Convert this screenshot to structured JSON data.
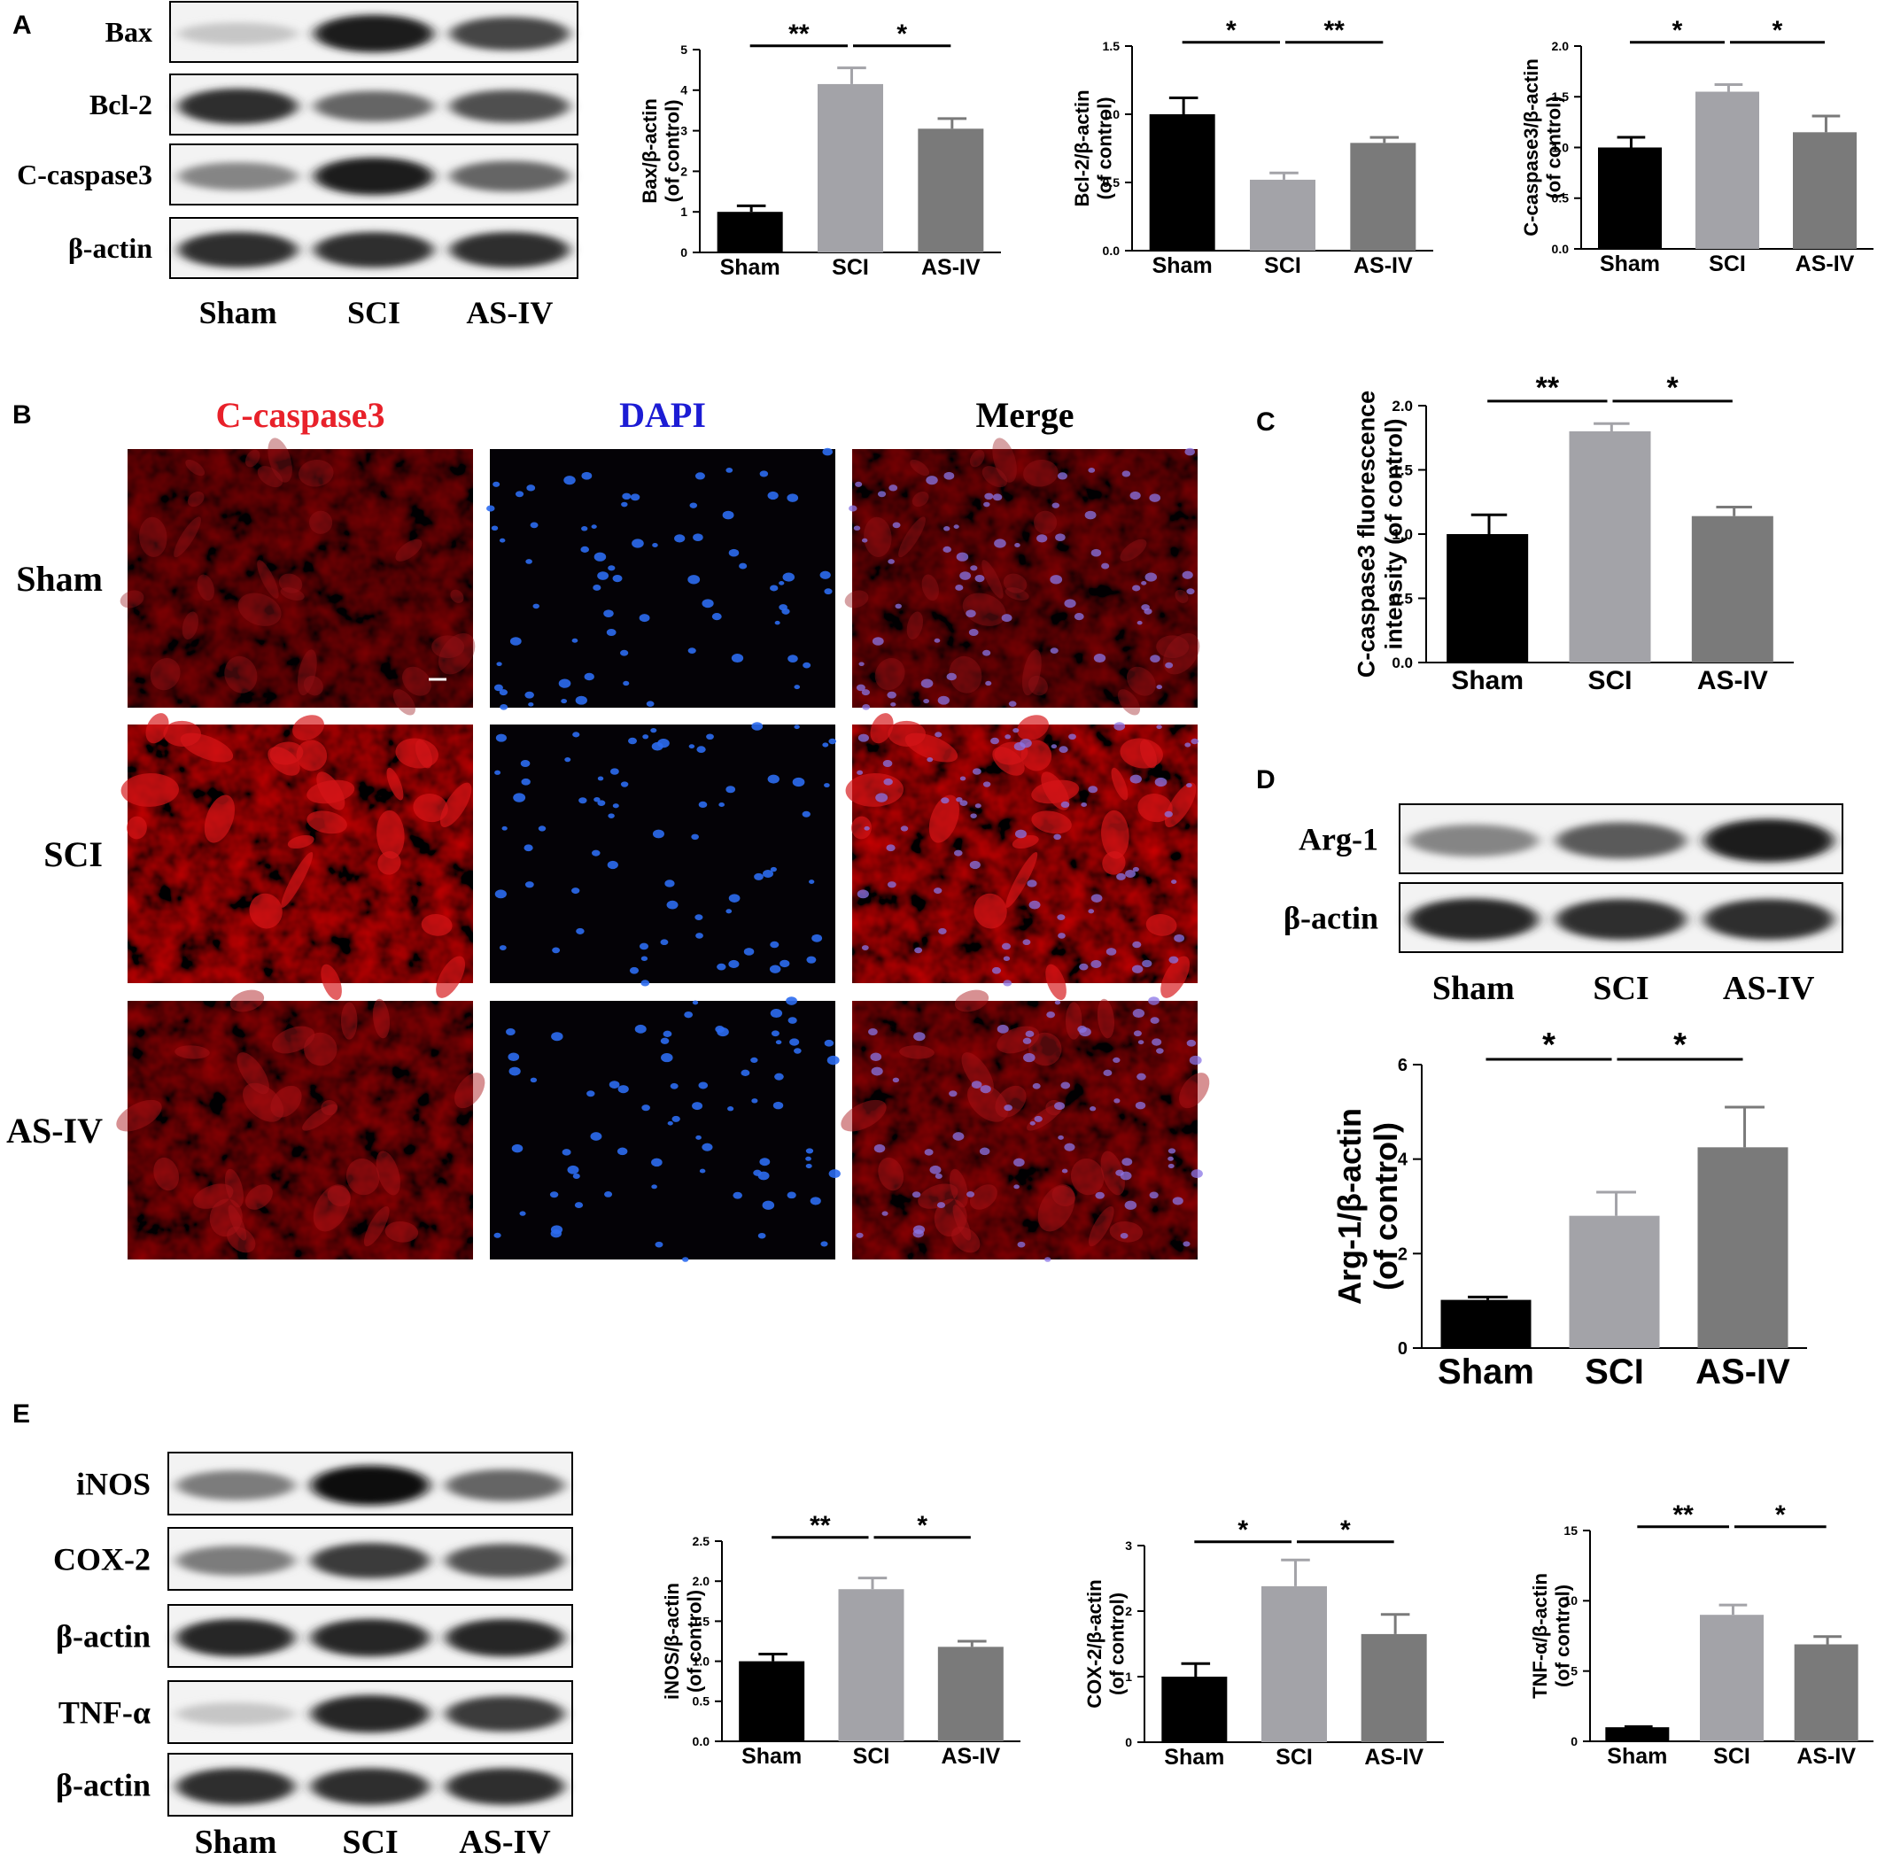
{
  "panel_letters": {
    "a": "A",
    "b": "B",
    "c": "C",
    "d": "D",
    "e": "E"
  },
  "groups": [
    "Sham",
    "SCI",
    "AS-IV"
  ],
  "colors": {
    "sham": "#000000",
    "sci": "#a3a3a8",
    "asiv": "#7a7a7a",
    "caspase_label": "#e8212a",
    "dapi_label": "#1c1cd4"
  },
  "blots": {
    "a": {
      "rows": [
        "Bax",
        "Bcl-2",
        "C-caspase3",
        "β-actin"
      ],
      "lanes": [
        "Sham",
        "SCI",
        "AS-IV"
      ]
    },
    "d": {
      "rows": [
        "Arg-1",
        "β-actin"
      ],
      "lanes": [
        "Sham",
        "SCI",
        "AS-IV"
      ]
    },
    "e": {
      "rows": [
        "iNOS",
        "COX-2",
        "β-actin",
        "TNF-α",
        "β-actin"
      ],
      "lanes": [
        "Sham",
        "SCI",
        "AS-IV"
      ]
    }
  },
  "blot_intensity": {
    "a": [
      [
        0.15,
        0.95,
        0.75
      ],
      [
        0.85,
        0.6,
        0.7
      ],
      [
        0.45,
        0.95,
        0.6
      ],
      [
        0.85,
        0.85,
        0.85
      ]
    ],
    "d": [
      [
        0.45,
        0.65,
        0.95
      ],
      [
        0.9,
        0.85,
        0.85
      ]
    ],
    "e": [
      [
        0.5,
        1.0,
        0.6
      ],
      [
        0.5,
        0.8,
        0.7
      ],
      [
        0.9,
        0.9,
        0.9
      ],
      [
        0.15,
        0.9,
        0.8
      ],
      [
        0.85,
        0.85,
        0.85
      ]
    ]
  },
  "micrographs": {
    "columns": [
      "C-caspase3",
      "DAPI",
      "Merge"
    ],
    "rows": [
      "Sham",
      "SCI",
      "AS-IV"
    ],
    "red_level": [
      0.3,
      0.85,
      0.45
    ]
  },
  "chart_data": [
    {
      "id": "bax",
      "type": "bar",
      "categories": [
        "Sham",
        "SCI",
        "AS-IV"
      ],
      "values": [
        1.0,
        4.15,
        3.05
      ],
      "errors": [
        0.15,
        0.4,
        0.25
      ],
      "ylabel": [
        "Bax/β-actin",
        "(of control)"
      ],
      "ylim": [
        0,
        5
      ],
      "yticks": [
        "0",
        "1",
        "2",
        "3",
        "4",
        "5"
      ],
      "sig": [
        {
          "from": 0,
          "to": 1,
          "label": "**"
        },
        {
          "from": 1,
          "to": 2,
          "label": "*"
        }
      ]
    },
    {
      "id": "bcl2",
      "type": "bar",
      "categories": [
        "Sham",
        "SCI",
        "AS-IV"
      ],
      "values": [
        1.0,
        0.52,
        0.79
      ],
      "errors": [
        0.12,
        0.05,
        0.04
      ],
      "ylabel": [
        "Bcl-2/β-actin",
        "(of control)"
      ],
      "ylim": [
        0,
        1.5
      ],
      "yticks": [
        "0.0",
        "0.5",
        "1.0",
        "1.5"
      ],
      "sig": [
        {
          "from": 0,
          "to": 1,
          "label": "*"
        },
        {
          "from": 1,
          "to": 2,
          "label": "**"
        }
      ]
    },
    {
      "id": "ccasp3",
      "type": "bar",
      "categories": [
        "Sham",
        "SCI",
        "AS-IV"
      ],
      "values": [
        1.0,
        1.55,
        1.15
      ],
      "errors": [
        0.1,
        0.07,
        0.16
      ],
      "ylabel": [
        "C-caspase3/β-actin",
        "(of control)"
      ],
      "ylim": [
        0,
        2.0
      ],
      "yticks": [
        "0.0",
        "0.5",
        "1.0",
        "1.5",
        "2.0"
      ],
      "sig": [
        {
          "from": 0,
          "to": 1,
          "label": "*"
        },
        {
          "from": 1,
          "to": 2,
          "label": "*"
        }
      ]
    },
    {
      "id": "fluor",
      "type": "bar",
      "categories": [
        "Sham",
        "SCI",
        "AS-IV"
      ],
      "values": [
        1.0,
        1.8,
        1.14
      ],
      "errors": [
        0.15,
        0.06,
        0.07
      ],
      "ylabel": [
        "C-caspase3 fluorescence",
        "intensity (of control)"
      ],
      "ylim": [
        0,
        2.0
      ],
      "yticks": [
        "0.0",
        "0.5",
        "1.0",
        "1.5",
        "2.0"
      ],
      "sig": [
        {
          "from": 0,
          "to": 1,
          "label": "**"
        },
        {
          "from": 1,
          "to": 2,
          "label": "*"
        }
      ]
    },
    {
      "id": "arg1",
      "type": "bar",
      "categories": [
        "Sham",
        "SCI",
        "AS-IV"
      ],
      "values": [
        1.02,
        2.8,
        4.25
      ],
      "errors": [
        0.06,
        0.5,
        0.85
      ],
      "ylabel": [
        "Arg-1/β-actin",
        "(of control)"
      ],
      "ylim": [
        0,
        6
      ],
      "yticks": [
        "0",
        "2",
        "4",
        "6"
      ],
      "sig": [
        {
          "from": 0,
          "to": 1,
          "label": "*"
        },
        {
          "from": 1,
          "to": 2,
          "label": "*"
        }
      ]
    },
    {
      "id": "inos",
      "type": "bar",
      "categories": [
        "Sham",
        "SCI",
        "AS-IV"
      ],
      "values": [
        1.0,
        1.9,
        1.18
      ],
      "errors": [
        0.09,
        0.14,
        0.07
      ],
      "ylabel": [
        "iNOS/β-actin",
        "(of control)"
      ],
      "ylim": [
        0,
        2.5
      ],
      "yticks": [
        "0.0",
        "0.5",
        "1.0",
        "1.5",
        "2.0",
        "2.5"
      ],
      "sig": [
        {
          "from": 0,
          "to": 1,
          "label": "**"
        },
        {
          "from": 1,
          "to": 2,
          "label": "*"
        }
      ]
    },
    {
      "id": "cox2",
      "type": "bar",
      "categories": [
        "Sham",
        "SCI",
        "AS-IV"
      ],
      "values": [
        1.0,
        2.38,
        1.65
      ],
      "errors": [
        0.2,
        0.4,
        0.3
      ],
      "ylabel": [
        "COX-2/β-actin",
        "(of control)"
      ],
      "ylim": [
        0,
        3
      ],
      "yticks": [
        "0",
        "1",
        "2",
        "3"
      ],
      "sig": [
        {
          "from": 0,
          "to": 1,
          "label": "*"
        },
        {
          "from": 1,
          "to": 2,
          "label": "*"
        }
      ]
    },
    {
      "id": "tnfa",
      "type": "bar",
      "categories": [
        "Sham",
        "SCI",
        "AS-IV"
      ],
      "values": [
        1.0,
        9.0,
        6.9
      ],
      "errors": [
        0.05,
        0.7,
        0.55
      ],
      "ylabel": [
        "TNF-α/β-actin",
        "(of control)"
      ],
      "ylim": [
        0,
        15
      ],
      "yticks": [
        "0",
        "5",
        "10",
        "15"
      ],
      "sig": [
        {
          "from": 0,
          "to": 1,
          "label": "**"
        },
        {
          "from": 1,
          "to": 2,
          "label": "*"
        }
      ]
    }
  ]
}
